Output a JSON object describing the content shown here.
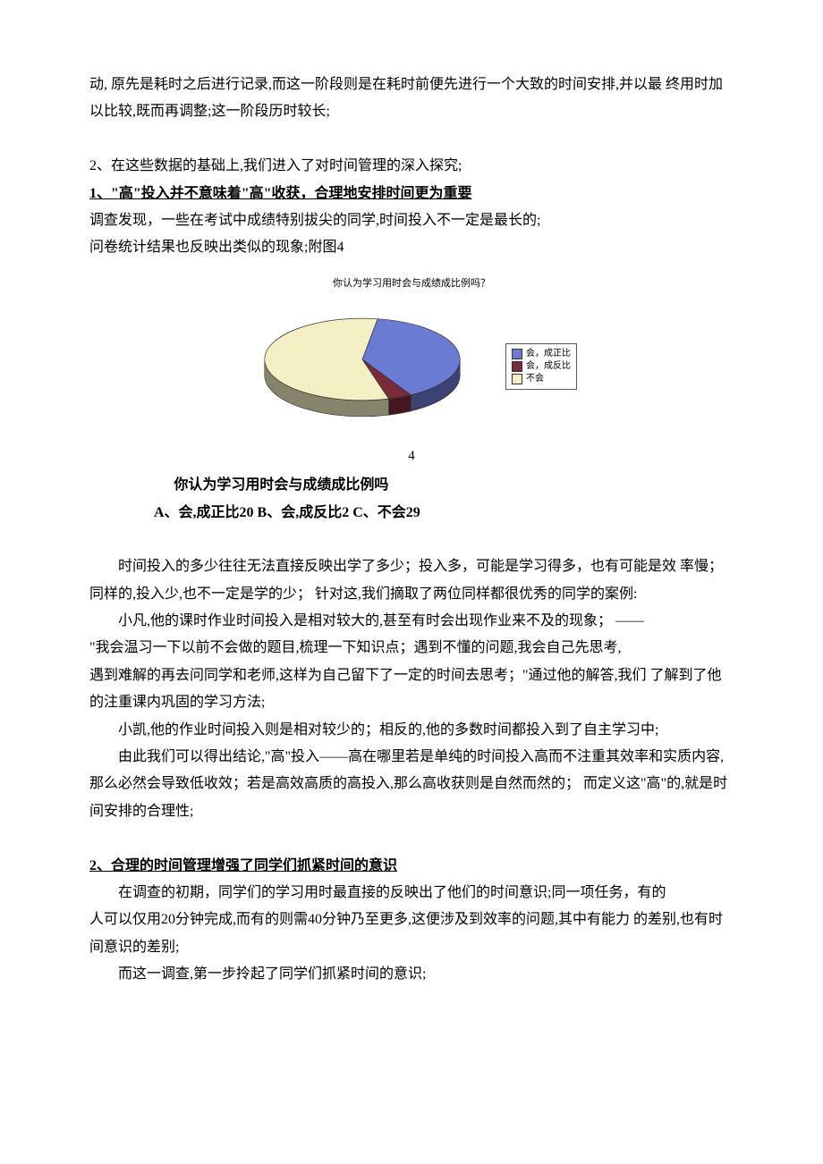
{
  "intro": {
    "p1": "动,  原先是耗时之后进行记录,而这一阶段则是在耗时前便先进行一个大致的时间安排,并以最  终用时加以比较,既而再调整;这一阶段历时较长;",
    "p2": "2、在这些数据的基础上,我们进入了对时间管理的深入探究;"
  },
  "section1": {
    "title": "1、\"高\"投入并不意味着\"高\"收获，合理地安排时间更为重要",
    "line1": "调查发现，一些在考试中成绩特别拔尖的同学,时间投入不一定是最长的;",
    "line2": "问卷统计结果也反映出类似的现象;附图4"
  },
  "chart": {
    "title": "你认为学习用时会与成绩成比例吗？",
    "type": "pie3d",
    "slices": [
      {
        "label": "会，成正比",
        "value": 20,
        "color": "#6a7bd4"
      },
      {
        "label": "会，成反比",
        "value": 2,
        "color": "#7a2b3a"
      },
      {
        "label": "不会",
        "value": 29,
        "color": "#f4f0c3"
      }
    ],
    "background_color": "#ffffff",
    "edge_color": "#333333",
    "title_fontsize": 11,
    "legend_fontsize": 10,
    "legend_position": "right",
    "aspect_w": 260,
    "aspect_h": 140
  },
  "page_number": "4",
  "question": {
    "q": "你认为学习用时会与成绩成比例吗",
    "answers": "A、会,成正比20 B、会,成反比2 C、不会29"
  },
  "body": {
    "p1": "时间投入的多少往往无法直接反映出学了多少；投入多，可能是学习得多，也有可能是效  率慢；同样的,投入少,也不一定是学的少；  针对这,我们摘取了两位同样都很优秀的同学的案例:",
    "p2a": "小凡,他的课时作业时间投入是相对较大的,甚至有时会出现作业来不及的现象；  ——",
    "p2b": "\"我会温习一下以前不会做的题目,梳理一下知识点；遇到不懂的问题,我会自己先思考,",
    "p2c": "遇到难解的再去问同学和老师,这样为自己留下了一定的时间去思考；\"通过他的解答,我们  了解到了他的注重课内巩固的学习方法;",
    "p3": "小凯,他的作业时间投入则是相对较少的；相反的,他的多数时间都投入到了自主学习中;",
    "p4": "由此我们可以得出结论,\"高\"投入——高在哪里若是单纯的时间投入高而不注重其效率和实质内容,那么必然会导致低收效；若是高效高质的高投入,那么高收获则是自然而然的；  而定义这\"高\"的,就是时间安排的合理性;"
  },
  "section2": {
    "title": "2、合理的时间管理增强了同学们抓紧时间的意识",
    "p1": "在调查的初期，同学们的学习用时最直接的反映出了他们的时间意识;同一项任务，有的",
    "p2": "人可以仅用20分钟完成,而有的则需40分钟乃至更多,这便涉及到效率的问题,其中有能力  的差别,也有时间意识的差别;",
    "p3": "而这一调查,第一步拎起了同学们抓紧时间的意识;"
  }
}
